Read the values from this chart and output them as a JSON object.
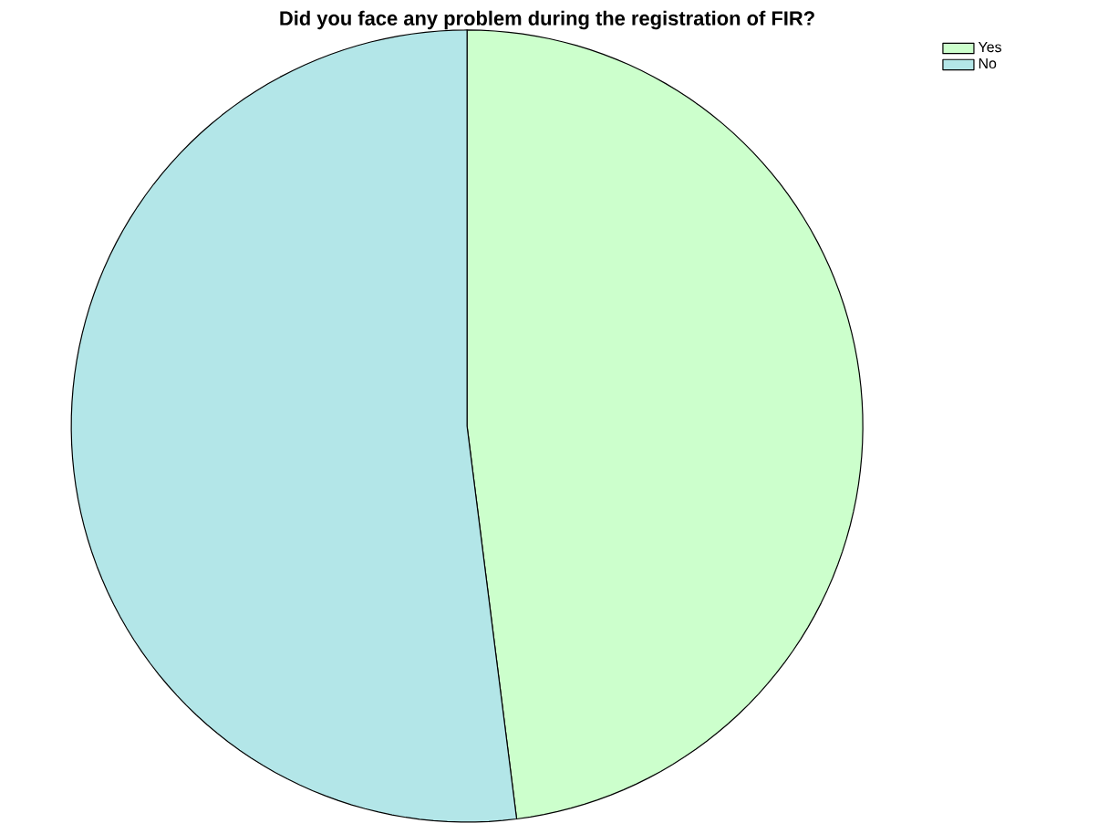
{
  "chart_data": {
    "type": "pie",
    "title": "Did you face any problem during the registration of FIR?",
    "categories": [
      "Yes",
      "No"
    ],
    "values": [
      48,
      52
    ],
    "colors": [
      "#ccffcc",
      "#b3e6e8"
    ],
    "legend": "top right"
  }
}
